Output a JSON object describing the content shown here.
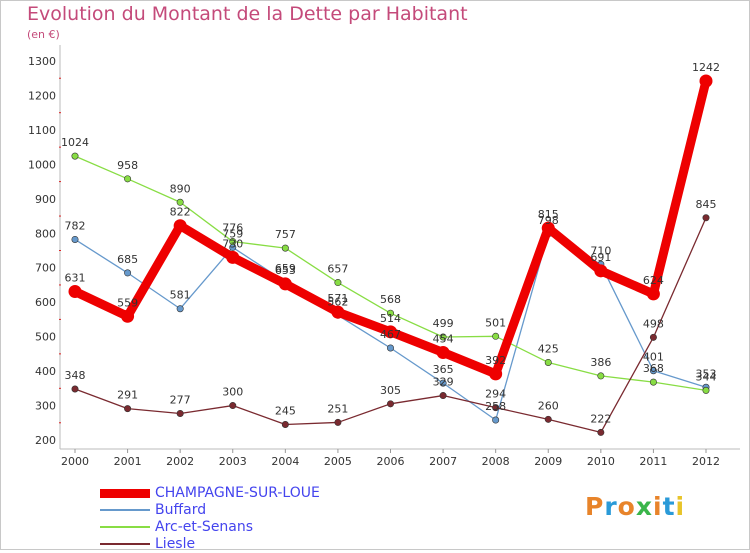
{
  "header": {
    "title": "Evolution du Montant de la Dette par Habitant",
    "subtitle": "(en €)"
  },
  "logo": {
    "text": "Proxiti",
    "colors": [
      "#e8842a",
      "#2a9ad8",
      "#e8842a",
      "#3ab54a",
      "#e8842a",
      "#2a9ad8",
      "#e8c42a"
    ]
  },
  "chart_data": {
    "type": "line",
    "title": "Evolution du Montant de la Dette par Habitant",
    "subtitle": "(en €)",
    "x": [
      "2000",
      "2001",
      "2002",
      "2003",
      "2004",
      "2005",
      "2006",
      "2007",
      "2008",
      "2009",
      "2010",
      "2011",
      "2012"
    ],
    "ylim": [
      200,
      1300
    ],
    "yticks": [
      200,
      300,
      400,
      500,
      600,
      700,
      800,
      900,
      1000,
      1100,
      1200,
      1300
    ],
    "grid": false,
    "legend_position": "bottom-left",
    "series": [
      {
        "name": "CHAMPAGNE-SUR-LOUE",
        "color": "#ee0000",
        "values": [
          631,
          559,
          822,
          730,
          653,
          571,
          514,
          454,
          392,
          815,
          691,
          624,
          1242
        ]
      },
      {
        "name": "Buffard",
        "color": "#6699cc",
        "values": [
          782,
          685,
          581,
          759,
          659,
          562,
          467,
          365,
          258,
          798,
          710,
          401,
          353
        ]
      },
      {
        "name": "Arc-et-Senans",
        "color": "#88dd44",
        "values": [
          1024,
          958,
          890,
          776,
          757,
          657,
          568,
          499,
          501,
          425,
          386,
          368,
          344
        ]
      },
      {
        "name": "Liesle",
        "color": "#7a2a30",
        "values": [
          348,
          291,
          277,
          300,
          245,
          251,
          305,
          329,
          294,
          260,
          222,
          498,
          845
        ]
      }
    ]
  }
}
